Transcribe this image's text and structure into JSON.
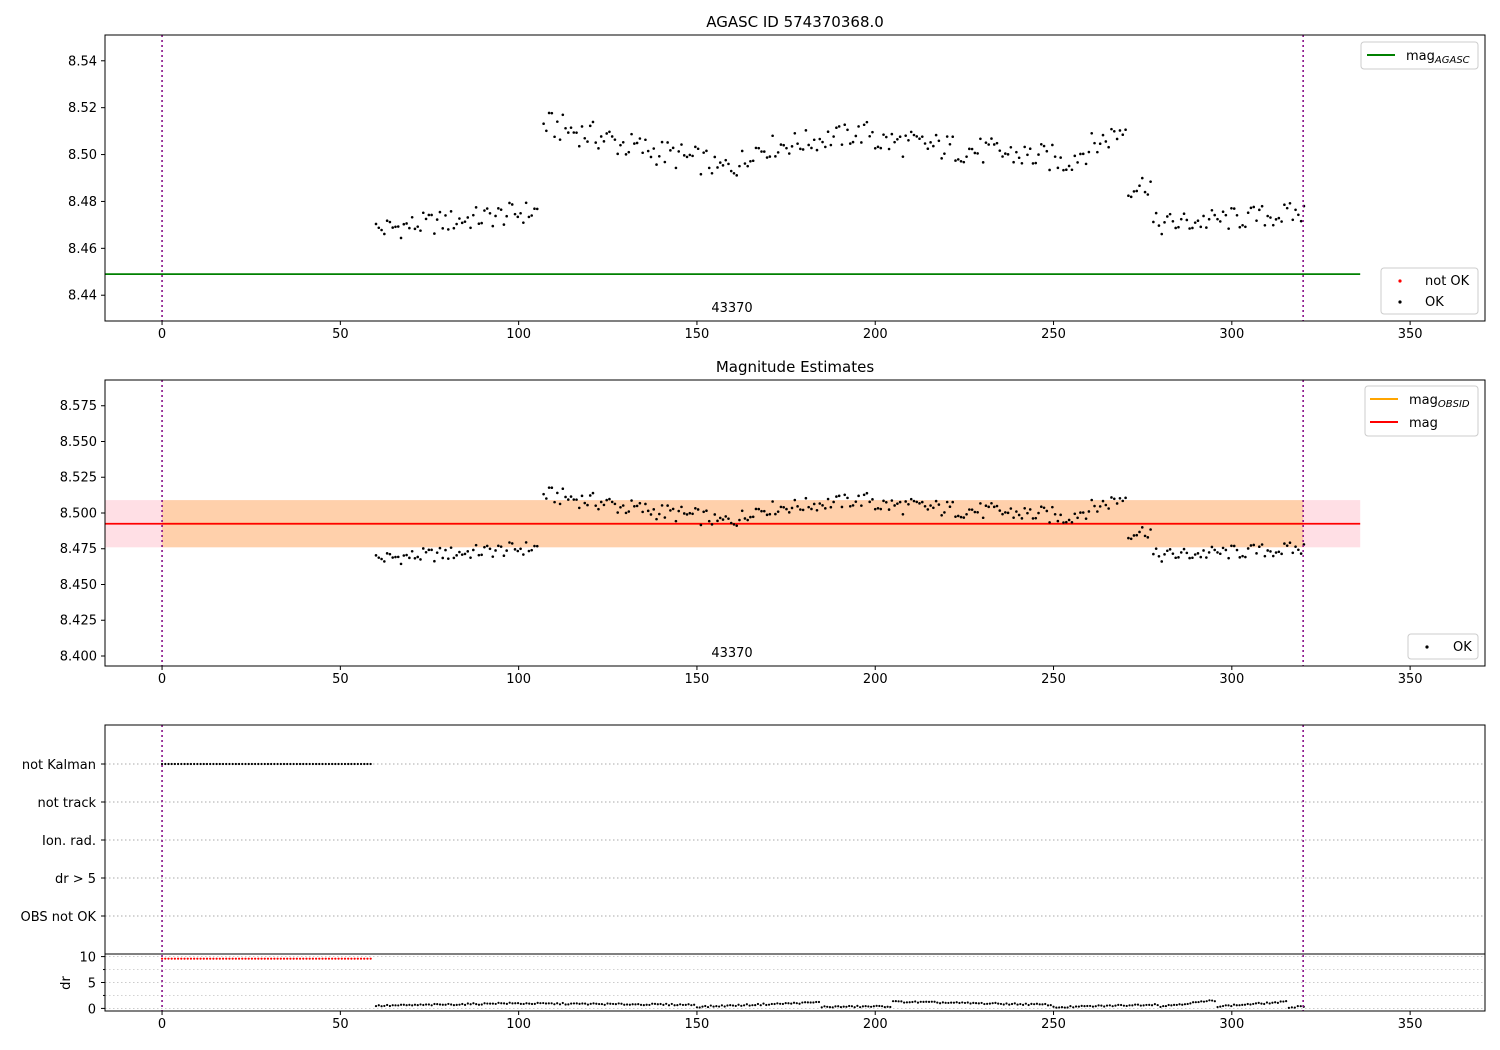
{
  "chart_data": [
    {
      "type": "scatter",
      "title": "AGASC ID 574370368.0",
      "xlim": [
        -16,
        371
      ],
      "ylim": [
        8.429,
        8.551
      ],
      "xticks": [
        0,
        50,
        100,
        150,
        200,
        250,
        300,
        350
      ],
      "yticks": [
        8.44,
        8.46,
        8.48,
        8.5,
        8.52,
        8.54
      ],
      "ytick_labels": [
        "8.44",
        "8.46",
        "8.48",
        "8.50",
        "8.52",
        "8.54"
      ],
      "vlines": [
        0,
        320
      ],
      "obsid_label": {
        "text": "43370",
        "x": 160
      },
      "hlines": [
        {
          "name": "mag_AGASC",
          "y": 8.449,
          "x": [
            -16,
            336
          ],
          "color": "#008000"
        }
      ],
      "legend_lines": {
        "entries": [
          {
            "base": "mag",
            "sub": "AGASC",
            "color": "#008000"
          }
        ],
        "loc": "upper right"
      },
      "legend_points": {
        "entries": [
          {
            "label": "not OK",
            "color": "#ff0000"
          },
          {
            "label": "OK",
            "color": "#000000"
          }
        ],
        "loc": "lower right"
      },
      "series": [
        {
          "name": "OK",
          "color": "#000000",
          "marker_radius": 1.3,
          "segments": [
            {
              "x0": 60,
              "x1": 106,
              "y0": 8.468,
              "y1": 8.476,
              "amp": 0.005
            },
            {
              "x0": 107,
              "x1": 127,
              "y0": 8.513,
              "y1": 8.506,
              "amp": 0.006
            },
            {
              "x0": 127,
              "x1": 155,
              "y0": 8.505,
              "y1": 8.496,
              "amp": 0.006
            },
            {
              "x0": 155,
              "x1": 165,
              "y0": 8.493,
              "y1": 8.498,
              "amp": 0.006
            },
            {
              "x0": 165,
              "x1": 200,
              "y0": 8.502,
              "y1": 8.51,
              "amp": 0.005
            },
            {
              "x0": 200,
              "x1": 252,
              "y0": 8.506,
              "y1": 8.498,
              "amp": 0.006
            },
            {
              "x0": 252,
              "x1": 271,
              "y0": 8.496,
              "y1": 8.512,
              "amp": 0.006
            },
            {
              "x0": 271,
              "x1": 278,
              "y0": 8.486,
              "y1": 8.488,
              "amp": 0.005
            },
            {
              "x0": 278,
              "x1": 321,
              "y0": 8.47,
              "y1": 8.475,
              "amp": 0.005
            }
          ]
        }
      ]
    },
    {
      "type": "scatter",
      "title": "Magnitude Estimates",
      "xlim": [
        -16,
        371
      ],
      "ylim": [
        8.393,
        8.593
      ],
      "xticks": [
        0,
        50,
        100,
        150,
        200,
        250,
        300,
        350
      ],
      "yticks": [
        8.4,
        8.425,
        8.45,
        8.475,
        8.5,
        8.525,
        8.55,
        8.575
      ],
      "ytick_labels": [
        "8.400",
        "8.425",
        "8.450",
        "8.475",
        "8.500",
        "8.525",
        "8.550",
        "8.575"
      ],
      "vlines": [
        0,
        320
      ],
      "obsid_label": {
        "text": "43370",
        "x": 160
      },
      "bands": [
        {
          "name": "mag band",
          "y0": 8.476,
          "y1": 8.509,
          "x": [
            -16,
            336
          ],
          "color": "#ffc0cb",
          "opacity": 0.5
        },
        {
          "name": "mag_OBSID band",
          "y0": 8.476,
          "y1": 8.509,
          "x": [
            0,
            320
          ],
          "color": "#ffa500",
          "opacity": 0.25
        }
      ],
      "hlines": [
        {
          "name": "mag_OBSID",
          "y": 8.4925,
          "x": [
            0,
            320
          ],
          "color": "#ffa500"
        },
        {
          "name": "mag",
          "y": 8.4925,
          "x": [
            -16,
            336
          ],
          "color": "#ff0000"
        }
      ],
      "legend_lines": {
        "entries": [
          {
            "base": "mag",
            "sub": "OBSID",
            "color": "#ffa500"
          },
          {
            "base": "mag",
            "sub": "",
            "color": "#ff0000"
          }
        ],
        "loc": "upper right"
      },
      "legend_points": {
        "entries": [
          {
            "label": "OK",
            "color": "#000000"
          }
        ],
        "loc": "lower right"
      },
      "series": [
        {
          "name": "OK",
          "color": "#000000",
          "marker_radius": 1.3,
          "same_as_panel": 0
        }
      ]
    },
    {
      "type": "scatter",
      "title": "",
      "xlim": [
        -16,
        371
      ],
      "xticks": [
        0,
        50,
        100,
        150,
        200,
        250,
        300,
        350
      ],
      "vlines": [
        0,
        320
      ],
      "flag_rows": [
        "not Kalman",
        "not track",
        "Ion. rad.",
        "dr > 5",
        "OBS not OK"
      ],
      "flag_points": [
        {
          "row": "not Kalman",
          "x0": 0,
          "x1": 59,
          "color": "#000000"
        }
      ],
      "dr": {
        "ylabel": "dr",
        "ylim": [
          -0.5,
          10.5
        ],
        "yticks": [
          0,
          5,
          10
        ],
        "minor_yticks": [
          2.5,
          7.5
        ],
        "red_points": {
          "x0": 0,
          "x1": 59,
          "y": 9.6,
          "color": "#ff0000"
        },
        "black_points": {
          "color": "#000000",
          "segments": [
            {
              "x0": 60,
              "x1": 92,
              "y0": 0.5,
              "y1": 0.9
            },
            {
              "x0": 92,
              "x1": 150,
              "y0": 1.0,
              "y1": 0.7
            },
            {
              "x0": 150,
              "x1": 185,
              "y0": 0.3,
              "y1": 1.2
            },
            {
              "x0": 185,
              "x1": 205,
              "y0": 0.3,
              "y1": 0.4
            },
            {
              "x0": 205,
              "x1": 250,
              "y0": 1.3,
              "y1": 0.7
            },
            {
              "x0": 250,
              "x1": 280,
              "y0": 0.2,
              "y1": 0.8
            },
            {
              "x0": 280,
              "x1": 296,
              "y0": 0.4,
              "y1": 1.6
            },
            {
              "x0": 296,
              "x1": 316,
              "y0": 0.4,
              "y1": 1.3
            },
            {
              "x0": 316,
              "x1": 321,
              "y0": 0.2,
              "y1": 0.5
            }
          ]
        }
      }
    }
  ]
}
